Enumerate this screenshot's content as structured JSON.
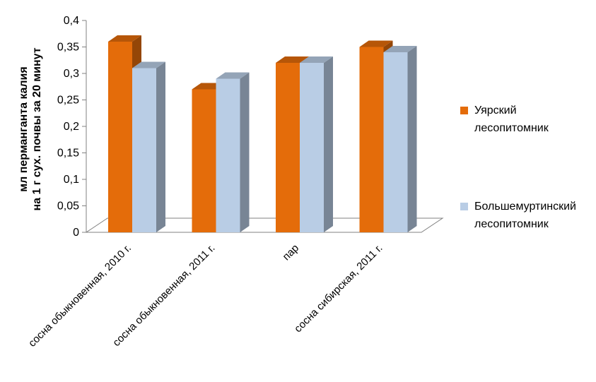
{
  "chart_data": {
    "type": "bar",
    "categories": [
      "сосна обыкновенная, 2010 г.",
      "сосна обыкновенная, 2011 г.",
      "пар",
      "сосна сибирская, 2011 г."
    ],
    "series": [
      {
        "name": "Уярский лесопитомник",
        "name_lines": [
          "Уярский",
          "лесопитомник"
        ],
        "values": [
          0.36,
          0.27,
          0.32,
          0.35
        ],
        "color": "#E46C0A"
      },
      {
        "name": "Большемуртинский лесопитомник",
        "name_lines": [
          "Большемуртинский",
          "лесопитомник"
        ],
        "values": [
          0.31,
          0.29,
          0.32,
          0.34
        ],
        "color": "#B9CDE5"
      }
    ],
    "ylabel_lines": [
      "мл перманганта калия",
      "на 1 г сух. почвы за 20 минут"
    ],
    "ylim": [
      0,
      0.4
    ],
    "yticks": [
      "0",
      "0,05",
      "0,1",
      "0,15",
      "0,2",
      "0,25",
      "0,3",
      "0,35",
      "0,4"
    ],
    "grid": false,
    "legend_position": "right",
    "style_3d": true
  }
}
